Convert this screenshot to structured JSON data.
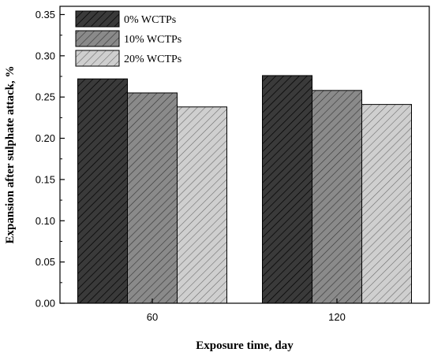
{
  "chart_data": {
    "type": "bar",
    "categories": [
      "60",
      "120"
    ],
    "series": [
      {
        "name": "0% WCTPs",
        "values": [
          0.272,
          0.276
        ],
        "color": "#3a3a3a"
      },
      {
        "name": "10% WCTPs",
        "values": [
          0.255,
          0.258
        ],
        "color": "#8a8a8a"
      },
      {
        "name": "20% WCTPs",
        "values": [
          0.238,
          0.241
        ],
        "color": "#c8c8c8"
      }
    ],
    "xlabel": "Exposure time, day",
    "ylabel": "Expansion after sulphate attack, %",
    "ylim": [
      0,
      0.36
    ],
    "yticks": [
      "0.00",
      "0.05",
      "0.10",
      "0.15",
      "0.20",
      "0.25",
      "0.30",
      "0.35"
    ],
    "grid": false,
    "legend_position": "top-left",
    "bar_pattern": "diagonal-hatch"
  }
}
